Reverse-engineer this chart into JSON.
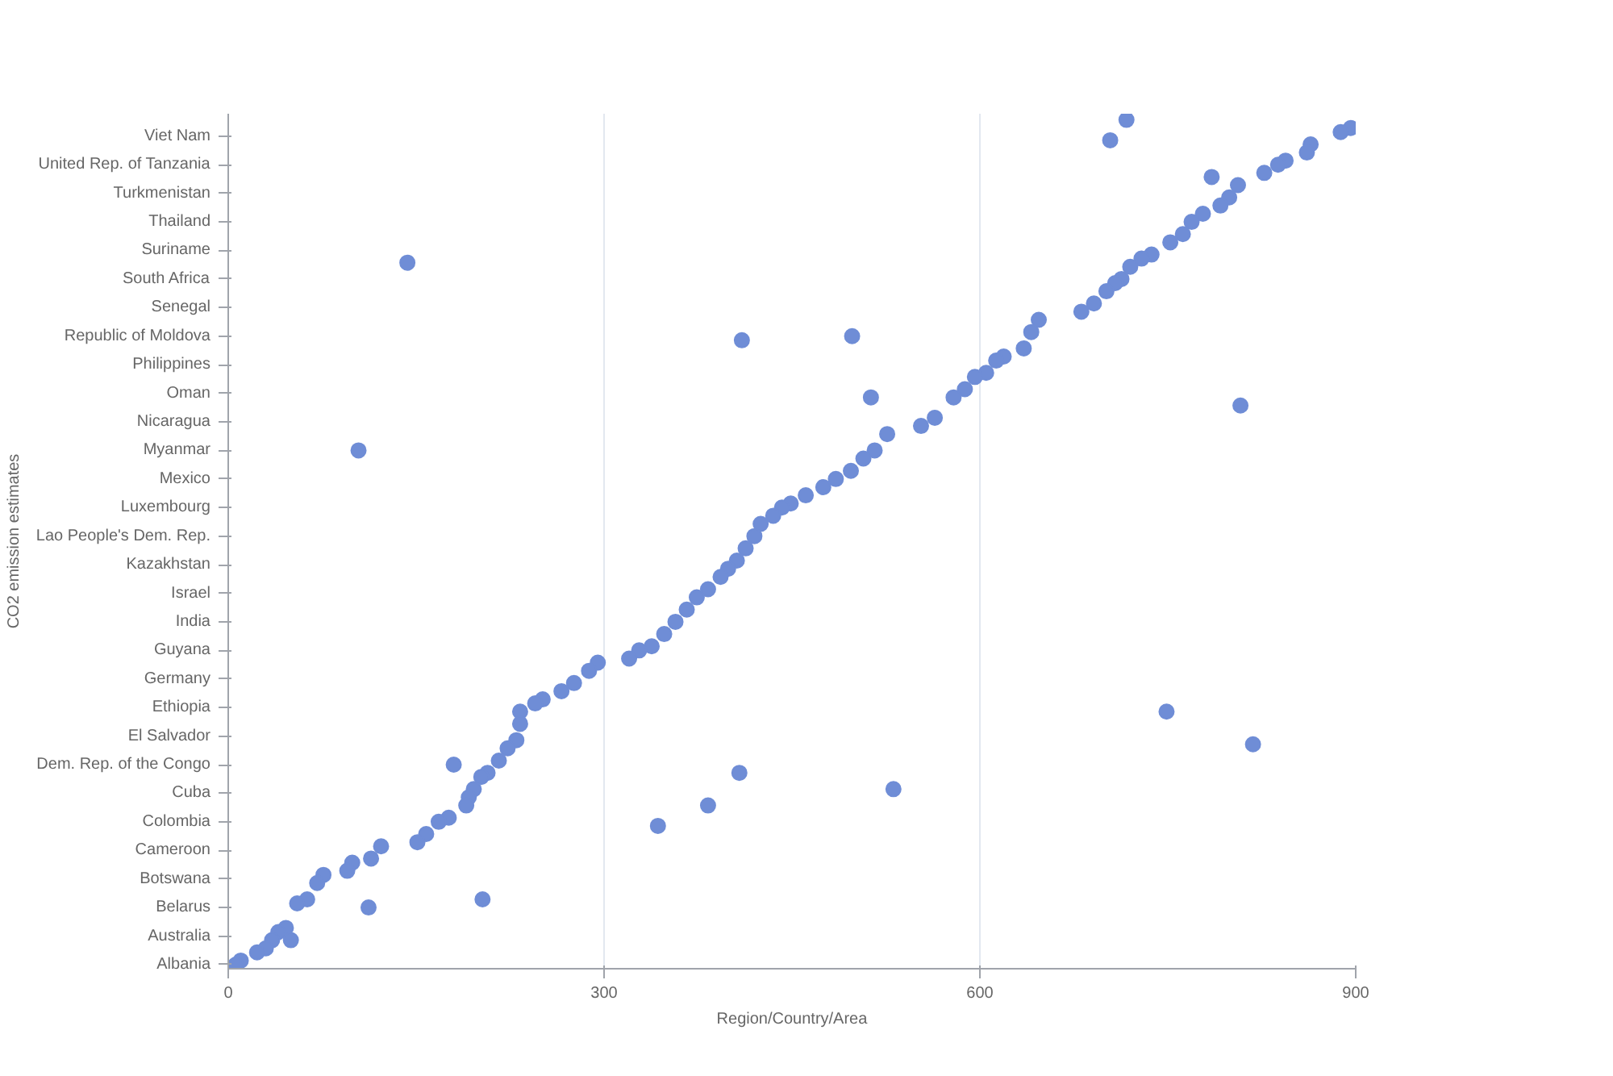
{
  "chart_data": {
    "type": "scatter",
    "orientation": "horizontal",
    "xlabel": "Region/Country/Area",
    "ylabel": "CO2 emission estimates",
    "xlim": [
      0,
      900
    ],
    "xticks": [
      0,
      300,
      600,
      900
    ],
    "categories": [
      null,
      null,
      null,
      null,
      "Viet Nam",
      null,
      null,
      null,
      null,
      null,
      null,
      "United Rep. of Tanzania",
      null,
      null,
      null,
      null,
      null,
      null,
      "Turkmenistan",
      null,
      null,
      null,
      null,
      null,
      null,
      "Thailand",
      null,
      null,
      null,
      null,
      null,
      null,
      "Suriname",
      null,
      null,
      null,
      null,
      null,
      null,
      "South Africa",
      null,
      null,
      null,
      null,
      null,
      null,
      "Senegal",
      null,
      null,
      null,
      null,
      null,
      null,
      "Republic of Moldova",
      null,
      null,
      null,
      null,
      null,
      null,
      "Philippines",
      null,
      null,
      null,
      null,
      null,
      null,
      "Oman",
      null,
      null,
      null,
      null,
      null,
      null,
      "Nicaragua",
      null,
      null,
      null,
      null,
      null,
      null,
      "Myanmar",
      null,
      null,
      null,
      null,
      null,
      null,
      "Mexico",
      null,
      null,
      null,
      null,
      null,
      null,
      "Luxembourg",
      null,
      null,
      null,
      null,
      null,
      null,
      "Lao People's Dem. Rep.",
      null,
      null,
      null,
      null,
      null,
      null,
      "Kazakhstan",
      null,
      null,
      null,
      null,
      null,
      null,
      "Israel",
      null,
      null,
      null,
      null,
      null,
      null,
      "India",
      null,
      null,
      null,
      null,
      null,
      null,
      "Guyana",
      null,
      null,
      null,
      null,
      null,
      null,
      "Germany",
      null,
      null,
      null,
      null,
      null,
      null,
      "Ethiopia",
      null,
      null,
      null,
      null,
      null,
      null,
      "El Salvador",
      null,
      null,
      null,
      null,
      null,
      null,
      "Dem. Rep. of the Congo",
      null,
      null,
      null,
      null,
      null,
      null,
      "Cuba",
      null,
      null,
      null,
      null,
      null,
      null,
      "Colombia",
      null,
      null,
      null,
      null,
      null,
      null,
      "Cameroon",
      null,
      null,
      null,
      null,
      null,
      null,
      "Botswana",
      null,
      null,
      null,
      null,
      null,
      null,
      "Belarus",
      null,
      null,
      null,
      null,
      null,
      null,
      "Australia",
      null,
      null,
      null,
      null,
      null,
      null,
      "Albania"
    ],
    "grid": "x",
    "marker": "circle",
    "series": [
      {
        "color": "#6f8dd6",
        "values": [
          null,
          null,
          896,
          888,
          null,
          null,
          864,
          null,
          861,
          null,
          844,
          838,
          null,
          827,
          null,
          null,
          806,
          null,
          null,
          799,
          null,
          792,
          null,
          778,
          null,
          769,
          null,
          null,
          762,
          null,
          752,
          null,
          null,
          737,
          729,
          null,
          720,
          null,
          null,
          713,
          708,
          null,
          701,
          null,
          null,
          691,
          null,
          681,
          null,
          647,
          null,
          null,
          641,
          null,
          null,
          null,
          635,
          null,
          619,
          613,
          null,
          null,
          605,
          596,
          null,
          null,
          588,
          null,
          579,
          null,
          null,
          null,
          null,
          564,
          null,
          553,
          null,
          526,
          null,
          null,
          null,
          516,
          null,
          507,
          null,
          null,
          497,
          null,
          485,
          null,
          475,
          null,
          461,
          null,
          449,
          442,
          null,
          435,
          null,
          425,
          null,
          null,
          420,
          null,
          null,
          413,
          null,
          null,
          406,
          null,
          399,
          null,
          393,
          null,
          null,
          383,
          null,
          374,
          null,
          null,
          366,
          null,
          null,
          357,
          null,
          null,
          348,
          null,
          null,
          338,
          328,
          null,
          320,
          295,
          null,
          288,
          null,
          null,
          276,
          null,
          266,
          null,
          251,
          245,
          null,
          233,
          null,
          null,
          233,
          null,
          null,
          null,
          230,
          null,
          223,
          null,
          null,
          216,
          null,
          null,
          207,
          202,
          null,
          null,
          196,
          null,
          192,
          null,
          190,
          null,
          null,
          176,
          168,
          null,
          null,
          158,
          null,
          151,
          122,
          null,
          null,
          114,
          99,
          null,
          95,
          76,
          null,
          71,
          null,
          null,
          null,
          63,
          55,
          null,
          null,
          null,
          null,
          null,
          46,
          40,
          null,
          35,
          null,
          30,
          23,
          null,
          10,
          6
        ]
      },
      {
        "color": "#6f8dd6",
        "values": [
          717,
          null,
          null,
          null,
          null,
          704,
          null,
          null,
          null,
          null,
          null,
          null,
          null,
          null,
          785,
          null,
          null,
          null,
          null,
          null,
          null,
          null,
          null,
          null,
          null,
          null,
          null,
          null,
          null,
          null,
          null,
          null,
          null,
          null,
          null,
          143,
          null,
          null,
          null,
          null,
          null,
          null,
          null,
          null,
          null,
          null,
          null,
          null,
          null,
          null,
          null,
          null,
          null,
          498,
          410,
          null,
          null,
          null,
          null,
          null,
          null,
          null,
          null,
          null,
          null,
          null,
          null,
          null,
          513,
          null,
          808,
          null,
          null,
          null,
          null,
          null,
          null,
          null,
          null,
          null,
          null,
          104,
          null,
          null,
          null,
          null,
          null,
          null,
          null,
          null,
          null,
          null,
          null,
          null,
          null,
          null,
          null,
          null,
          null,
          null,
          null,
          null,
          null,
          null,
          null,
          null,
          null,
          null,
          null,
          null,
          null,
          null,
          null,
          null,
          null,
          null,
          null,
          null,
          null,
          null,
          null,
          null,
          null,
          null,
          null,
          null,
          null,
          null,
          null,
          null,
          null,
          null,
          null,
          null,
          null,
          null,
          null,
          null,
          null,
          null,
          null,
          null,
          null,
          null,
          null,
          749,
          null,
          null,
          null,
          null,
          null,
          null,
          null,
          818,
          null,
          null,
          null,
          null,
          180,
          null,
          408,
          null,
          null,
          null,
          531,
          null,
          null,
          null,
          383,
          null,
          null,
          null,
          null,
          343,
          null,
          null,
          null,
          null,
          null,
          null,
          null,
          null,
          null,
          null,
          null,
          null,
          null,
          null,
          null,
          null,
          null,
          203,
          null,
          112,
          null,
          null,
          null,
          null,
          null,
          null,
          null,
          50,
          null,
          null,
          null,
          null,
          null,
          null
        ]
      }
    ]
  }
}
